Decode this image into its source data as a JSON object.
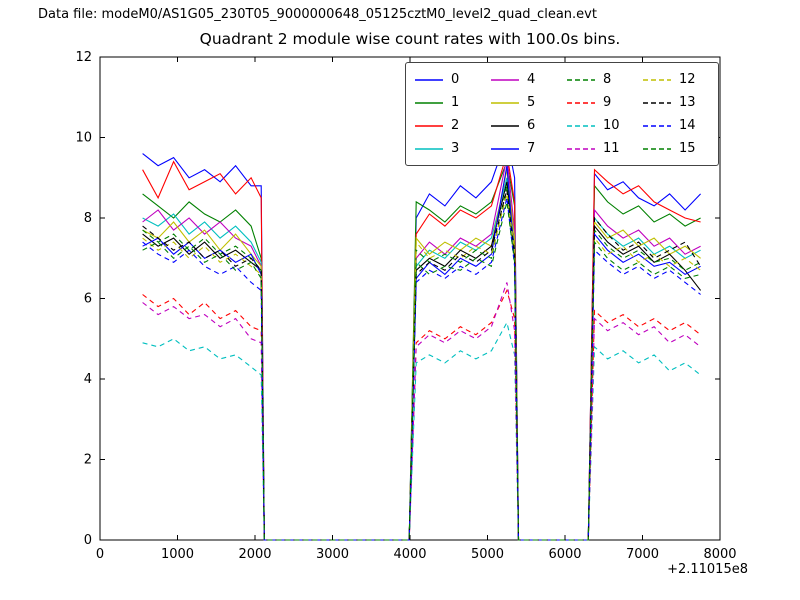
{
  "figure": {
    "data_file_label": "Data file: modeM0/AS1G05_230T05_9000000648_05125cztM0_level2_quad_clean.evt",
    "title": "Quadrant 2 module wise count rates with 100.0s bins.",
    "x_offset_label": "+2.11015e8"
  },
  "chart_data": {
    "type": "line",
    "title": "Quadrant 2 module wise count rates with 100.0s bins.",
    "xlabel": "",
    "ylabel": "",
    "xlim": [
      0,
      8000
    ],
    "ylim": [
      0,
      12
    ],
    "xticks": [
      0,
      1000,
      2000,
      3000,
      4000,
      5000,
      6000,
      7000,
      8000
    ],
    "yticks": [
      0,
      2,
      4,
      6,
      8,
      10,
      12
    ],
    "x_axis_offset": "+2.11015e8",
    "grid": false,
    "legend_position": "upper center",
    "legend_columns": 4,
    "x": [
      550,
      750,
      950,
      1150,
      1350,
      1550,
      1750,
      1950,
      2080,
      2120,
      3990,
      4080,
      4250,
      4450,
      4650,
      4850,
      5050,
      5250,
      5350,
      5400,
      6300,
      6380,
      6550,
      6750,
      6950,
      7150,
      7350,
      7550,
      7750
    ],
    "series": [
      {
        "name": "0",
        "color": "#0000ff",
        "dashed": false,
        "values": [
          9.6,
          9.3,
          9.5,
          9.0,
          9.2,
          8.9,
          9.3,
          8.8,
          8.8,
          0,
          0,
          8.0,
          8.6,
          8.3,
          8.8,
          8.5,
          8.9,
          10.0,
          9.0,
          0,
          0,
          9.1,
          8.7,
          8.9,
          8.5,
          8.3,
          8.6,
          8.2,
          8.6
        ]
      },
      {
        "name": "1",
        "color": "#008000",
        "dashed": false,
        "values": [
          8.6,
          8.3,
          8.0,
          8.4,
          8.1,
          7.9,
          8.2,
          7.8,
          7.0,
          0,
          0,
          8.4,
          8.2,
          7.9,
          8.3,
          8.1,
          8.4,
          9.4,
          8.3,
          0,
          0,
          8.8,
          8.4,
          8.1,
          8.3,
          7.9,
          8.1,
          7.8,
          8.0
        ]
      },
      {
        "name": "2",
        "color": "#ff0000",
        "dashed": false,
        "values": [
          9.2,
          8.5,
          9.4,
          8.7,
          8.9,
          9.1,
          8.6,
          9.0,
          8.5,
          0,
          0,
          7.6,
          8.1,
          7.8,
          8.2,
          8.0,
          8.3,
          9.6,
          8.4,
          0,
          0,
          9.2,
          8.9,
          8.6,
          8.8,
          8.4,
          8.2,
          8.0,
          7.9
        ]
      },
      {
        "name": "3",
        "color": "#00bfbf",
        "dashed": false,
        "values": [
          8.0,
          7.8,
          8.1,
          7.6,
          7.9,
          7.5,
          7.8,
          7.4,
          6.9,
          0,
          0,
          6.8,
          7.2,
          7.0,
          7.4,
          7.2,
          7.5,
          9.0,
          7.6,
          0,
          0,
          8.0,
          7.6,
          7.3,
          7.5,
          7.1,
          7.3,
          7.0,
          7.2
        ]
      },
      {
        "name": "4",
        "color": "#bf00bf",
        "dashed": false,
        "values": [
          7.9,
          8.2,
          7.7,
          8.0,
          7.6,
          7.9,
          7.5,
          7.3,
          6.8,
          0,
          0,
          7.0,
          7.4,
          7.1,
          7.5,
          7.3,
          7.6,
          9.5,
          7.7,
          0,
          0,
          8.2,
          7.8,
          7.5,
          7.7,
          7.3,
          7.5,
          7.1,
          7.3
        ]
      },
      {
        "name": "5",
        "color": "#bfbf00",
        "dashed": false,
        "values": [
          7.7,
          7.5,
          7.9,
          7.4,
          7.7,
          7.2,
          7.6,
          7.1,
          6.8,
          0,
          0,
          7.5,
          7.1,
          7.4,
          7.2,
          7.5,
          7.3,
          9.2,
          7.5,
          0,
          0,
          7.9,
          7.5,
          7.7,
          7.3,
          7.5,
          7.1,
          7.3,
          7.0
        ]
      },
      {
        "name": "6",
        "color": "#000000",
        "dashed": false,
        "values": [
          7.6,
          7.3,
          7.5,
          7.1,
          7.4,
          7.0,
          7.2,
          6.9,
          6.7,
          0,
          0,
          6.7,
          7.0,
          6.8,
          7.2,
          7.0,
          7.3,
          8.9,
          7.2,
          0,
          0,
          7.8,
          7.4,
          7.1,
          7.3,
          6.9,
          7.1,
          6.7,
          6.2
        ]
      },
      {
        "name": "7",
        "color": "#0000ff",
        "dashed": false,
        "values": [
          7.3,
          7.5,
          7.1,
          7.4,
          7.0,
          7.2,
          6.9,
          7.1,
          6.6,
          0,
          0,
          6.5,
          6.9,
          6.6,
          7.0,
          6.8,
          7.1,
          9.3,
          7.0,
          0,
          0,
          7.6,
          7.2,
          6.9,
          7.1,
          6.8,
          6.9,
          6.6,
          6.8
        ]
      },
      {
        "name": "8",
        "color": "#008000",
        "dashed": true,
        "values": [
          7.7,
          7.4,
          7.6,
          7.2,
          7.5,
          7.1,
          7.3,
          7.0,
          6.7,
          0,
          0,
          7.2,
          6.9,
          7.1,
          6.9,
          7.2,
          7.0,
          8.8,
          7.1,
          0,
          0,
          7.7,
          7.3,
          7.0,
          7.2,
          6.9,
          7.0,
          6.7,
          6.9
        ]
      },
      {
        "name": "9",
        "color": "#ff0000",
        "dashed": true,
        "values": [
          6.1,
          5.8,
          6.0,
          5.6,
          5.9,
          5.5,
          5.7,
          5.3,
          5.2,
          0,
          0,
          4.9,
          5.2,
          5.0,
          5.3,
          5.1,
          5.4,
          6.2,
          5.5,
          0,
          0,
          5.7,
          5.4,
          5.6,
          5.3,
          5.5,
          5.2,
          5.4,
          5.1
        ]
      },
      {
        "name": "10",
        "color": "#00bfbf",
        "dashed": true,
        "values": [
          4.9,
          4.8,
          5.0,
          4.7,
          4.8,
          4.5,
          4.6,
          4.3,
          4.1,
          0,
          0,
          4.4,
          4.6,
          4.4,
          4.7,
          4.5,
          4.7,
          5.4,
          4.6,
          0,
          0,
          4.8,
          4.5,
          4.7,
          4.4,
          4.6,
          4.2,
          4.4,
          4.1
        ]
      },
      {
        "name": "11",
        "color": "#bf00bf",
        "dashed": true,
        "values": [
          5.9,
          5.6,
          5.8,
          5.5,
          5.6,
          5.3,
          5.5,
          5.0,
          4.9,
          0,
          0,
          4.8,
          5.1,
          4.9,
          5.2,
          5.0,
          5.3,
          6.4,
          5.2,
          0,
          0,
          5.5,
          5.2,
          5.4,
          5.1,
          5.3,
          4.9,
          5.1,
          4.8
        ]
      },
      {
        "name": "12",
        "color": "#bfbf00",
        "dashed": true,
        "values": [
          7.5,
          7.2,
          7.4,
          7.0,
          7.3,
          6.9,
          7.1,
          6.8,
          6.6,
          0,
          0,
          7.4,
          7.0,
          7.2,
          7.0,
          7.3,
          7.1,
          8.6,
          7.2,
          0,
          0,
          7.5,
          7.1,
          7.3,
          6.9,
          7.1,
          6.8,
          7.0,
          6.7
        ]
      },
      {
        "name": "13",
        "color": "#000000",
        "dashed": true,
        "values": [
          7.8,
          7.5,
          7.2,
          7.4,
          7.0,
          7.2,
          6.8,
          7.0,
          6.7,
          0,
          0,
          6.6,
          6.9,
          6.7,
          7.1,
          6.9,
          7.2,
          8.7,
          7.0,
          0,
          0,
          8.0,
          7.6,
          7.2,
          7.4,
          7.0,
          7.2,
          7.4,
          6.8
        ]
      },
      {
        "name": "14",
        "color": "#0000ff",
        "dashed": true,
        "values": [
          7.4,
          7.1,
          6.9,
          7.2,
          6.8,
          6.6,
          6.8,
          6.4,
          6.2,
          0,
          0,
          6.4,
          6.7,
          6.5,
          6.8,
          6.6,
          6.9,
          8.5,
          6.8,
          0,
          0,
          7.2,
          6.9,
          6.6,
          6.8,
          6.5,
          6.7,
          6.4,
          6.1
        ]
      },
      {
        "name": "15",
        "color": "#008000",
        "dashed": true,
        "values": [
          7.2,
          7.4,
          7.0,
          7.3,
          6.9,
          7.1,
          6.7,
          6.9,
          6.5,
          0,
          0,
          6.9,
          6.6,
          6.8,
          6.7,
          7.0,
          6.8,
          8.4,
          6.9,
          0,
          0,
          7.4,
          7.0,
          6.7,
          6.9,
          6.6,
          6.8,
          6.5,
          6.6
        ]
      }
    ]
  }
}
